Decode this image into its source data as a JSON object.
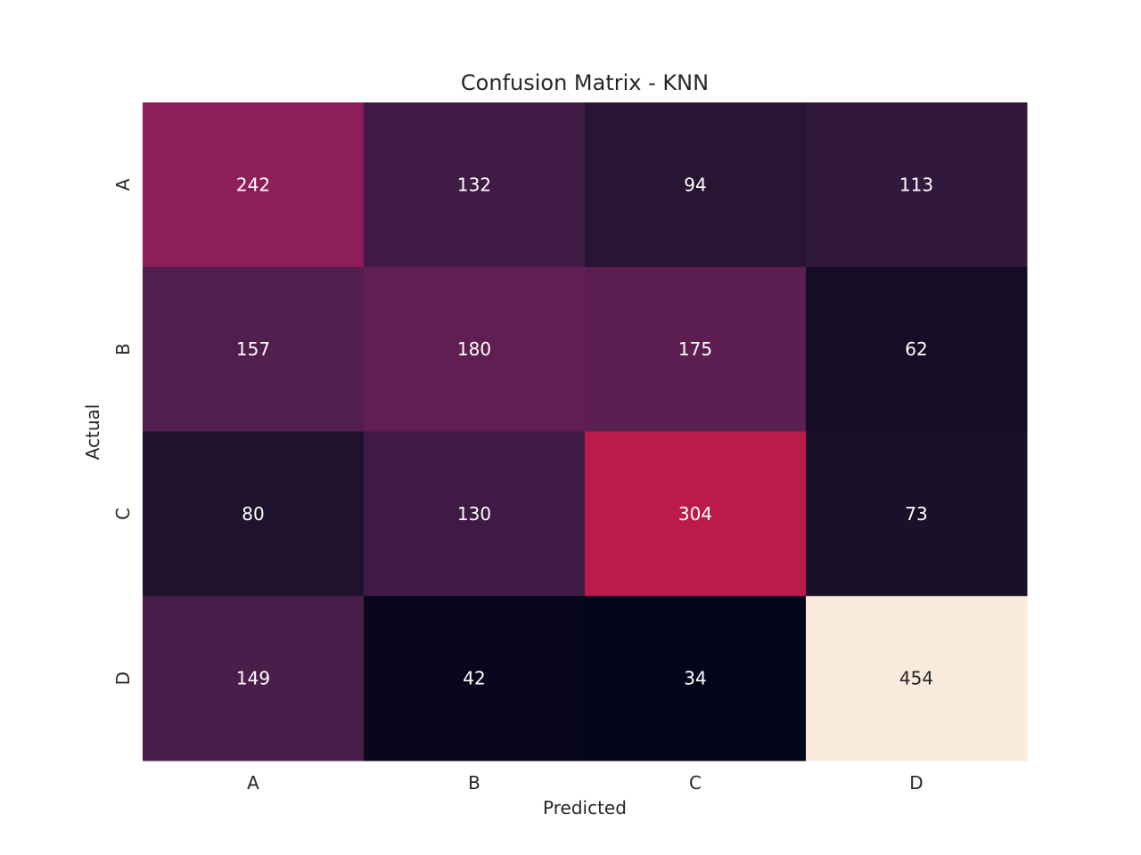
{
  "chart_data": {
    "type": "heatmap",
    "title": "Confusion Matrix - KNN",
    "xlabel": "Predicted",
    "ylabel": "Actual",
    "x_categories": [
      "A",
      "B",
      "C",
      "D"
    ],
    "y_categories": [
      "A",
      "B",
      "C",
      "D"
    ],
    "values": [
      [
        242,
        132,
        94,
        113
      ],
      [
        157,
        180,
        175,
        62
      ],
      [
        80,
        130,
        304,
        73
      ],
      [
        149,
        42,
        34,
        454
      ]
    ],
    "colormap": "rocket",
    "value_range": [
      34,
      454
    ],
    "colorbar": false,
    "annotations": true
  }
}
